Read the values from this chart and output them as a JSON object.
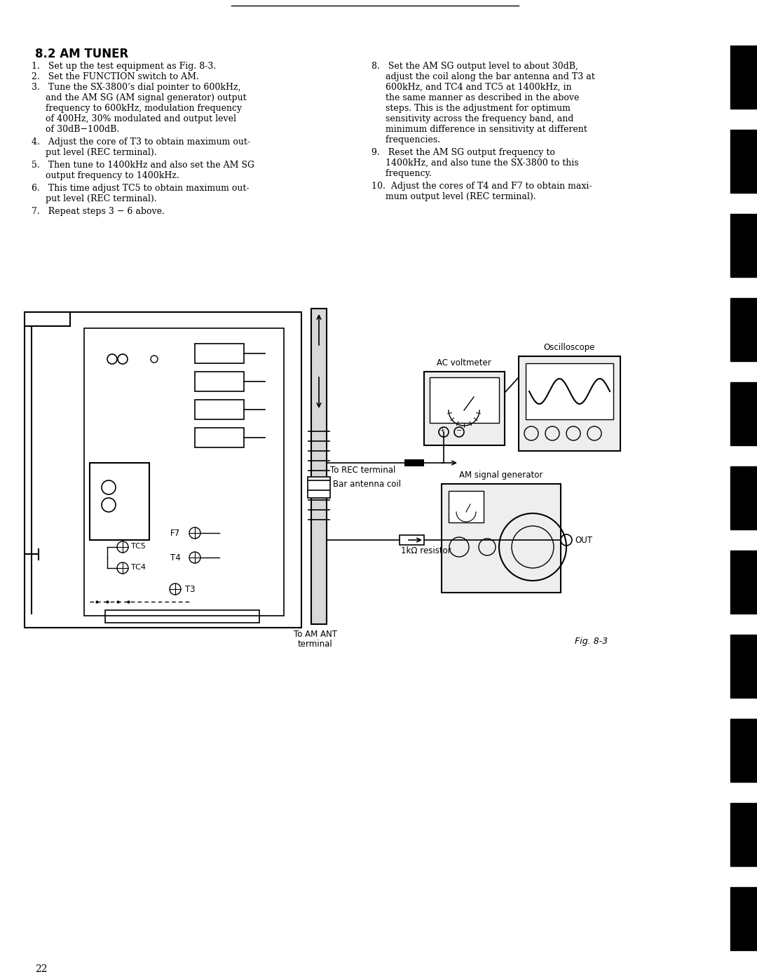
{
  "page_bg": "#ffffff",
  "page_number": "22",
  "heading": "8.2 AM TUNER",
  "line_color": "#000000",
  "text_color": "#000000",
  "fig_label": "Fig. 8-3",
  "tab_positions": [
    110,
    230,
    350,
    470,
    590,
    710,
    830,
    950,
    1070,
    1190,
    1310
  ],
  "diagram_labels": {
    "oscilloscope": "Oscilloscope",
    "ac_voltmeter": "AC voltmeter",
    "am_signal_generator": "AM signal generator",
    "to_rec_terminal": "To REC terminal",
    "bar_antenna_coil": "Bar antenna coil",
    "to_am_ant_line1": "To AM ANT",
    "to_am_ant_line2": "terminal",
    "resistor": "1kΩ resistor",
    "out_label": "OUT",
    "f7_label": "F7",
    "t4_label": "T4",
    "tc5_label": "TC5",
    "tc4_label": "TC4",
    "t3_label": "T3"
  }
}
